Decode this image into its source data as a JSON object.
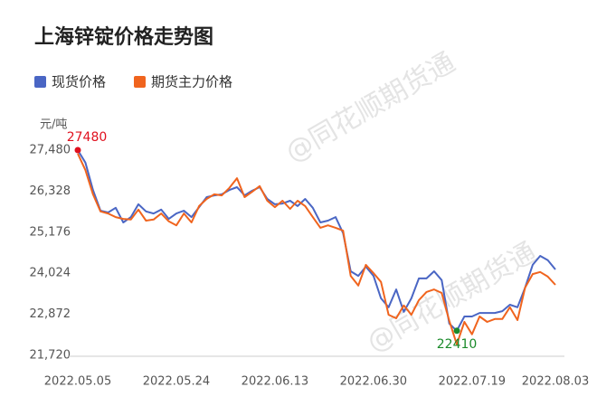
{
  "chart_data": {
    "type": "line",
    "title": "上海锌锭价格走势图",
    "y_unit": "元/吨",
    "watermark": "@同花顺期货通",
    "categories": [
      "2022.05.05",
      null,
      null,
      null,
      null,
      null,
      null,
      null,
      null,
      null,
      null,
      null,
      null,
      "2022.05.24",
      null,
      null,
      null,
      null,
      null,
      null,
      null,
      null,
      null,
      null,
      null,
      null,
      "2022.06.13",
      null,
      null,
      null,
      null,
      null,
      null,
      null,
      null,
      null,
      null,
      null,
      null,
      "2022.06.30",
      null,
      null,
      null,
      null,
      null,
      null,
      null,
      null,
      null,
      null,
      null,
      null,
      "2022.07.19",
      null,
      null,
      null,
      null,
      null,
      null,
      null,
      null,
      null,
      null,
      "2022.08.03"
    ],
    "series": [
      {
        "name": "现货价格",
        "color": "#4a66c4",
        "values": [
          27480,
          27130,
          26360,
          25780,
          25730,
          25860,
          25450,
          25600,
          25960,
          25760,
          25700,
          25810,
          25550,
          25700,
          25780,
          25600,
          25880,
          26160,
          26210,
          26240,
          26360,
          26440,
          26210,
          26340,
          26440,
          26110,
          25960,
          25980,
          26060,
          25910,
          26110,
          25860,
          25450,
          25500,
          25600,
          25150,
          24080,
          23950,
          24210,
          23950,
          23320,
          23070,
          23570,
          22940,
          23320,
          23880,
          23880,
          24080,
          23830,
          22610,
          22410,
          22810,
          22810,
          22910,
          22910,
          22910,
          22960,
          23140,
          23070,
          23620,
          24260,
          24510,
          24390,
          24130
        ]
      },
      {
        "name": "期货主力价格",
        "color": "#f0641e",
        "values": [
          27380,
          26920,
          26240,
          25760,
          25700,
          25600,
          25550,
          25530,
          25810,
          25500,
          25530,
          25700,
          25480,
          25370,
          25700,
          25450,
          25910,
          26110,
          26240,
          26210,
          26420,
          26690,
          26160,
          26310,
          26470,
          26060,
          25880,
          26060,
          25830,
          26060,
          25910,
          25600,
          25300,
          25370,
          25300,
          25220,
          23950,
          23680,
          24260,
          24030,
          23780,
          22860,
          22760,
          23120,
          22860,
          23270,
          23500,
          23570,
          23470,
          22690,
          22030,
          22660,
          22310,
          22810,
          22660,
          22740,
          22740,
          23070,
          22710,
          23620,
          24000,
          24060,
          23930,
          23700
        ]
      }
    ],
    "ylim": [
      21720,
      27480
    ],
    "yticks": [
      {
        "value": 27480,
        "label": "27,480"
      },
      {
        "value": 26328,
        "label": "26,328"
      },
      {
        "value": 25176,
        "label": "25,176"
      },
      {
        "value": 24024,
        "label": "24,024"
      },
      {
        "value": 22872,
        "label": "22,872"
      },
      {
        "value": 21720,
        "label": "21,720"
      }
    ],
    "annotations": [
      {
        "text": "27480",
        "value": 27480,
        "color": "#e0101e"
      },
      {
        "text": "22410",
        "value": 22410,
        "color": "#1a8a2a"
      }
    ],
    "grid": false
  }
}
